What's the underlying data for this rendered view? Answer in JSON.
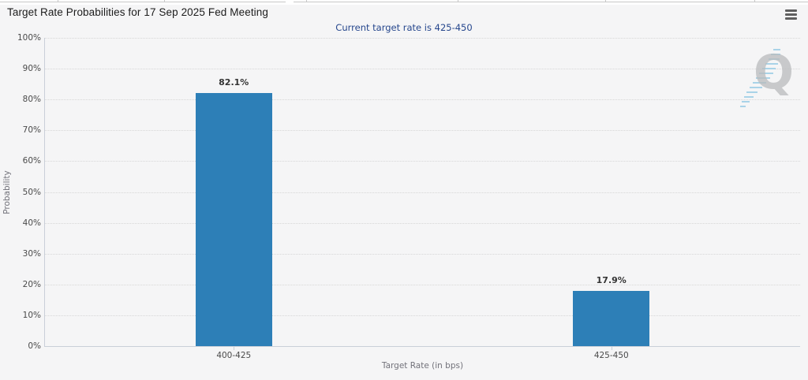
{
  "header": {
    "title": "Target Rate Probabilities for 17 Sep 2025 Fed Meeting",
    "subtitle": "Current target rate is 425-450"
  },
  "watermark": {
    "letter": "Q"
  },
  "chart_data": {
    "type": "bar",
    "title": "Target Rate Probabilities for 17 Sep 2025 Fed Meeting",
    "subtitle": "Current target rate is 425-450",
    "categories": [
      "400-425",
      "425-450"
    ],
    "values": [
      82.1,
      17.9
    ],
    "data_labels": [
      "82.1%",
      "17.9%"
    ],
    "xlabel": "Target Rate (in bps)",
    "ylabel": "Probability",
    "ylim": [
      0,
      100
    ],
    "ytick_step": 10,
    "ytick_labels": [
      "0%",
      "10%",
      "20%",
      "30%",
      "40%",
      "50%",
      "60%",
      "70%",
      "80%",
      "90%",
      "100%"
    ],
    "grid": "dotted-horizontal",
    "legend": "none",
    "bar_color": "#2d7fb7"
  },
  "colors": {
    "background": "#f5f5f6",
    "bar": "#2d7fb7",
    "subtitle_text": "#26478d",
    "axis_line": "#c9cfd8",
    "gridline": "#d7d7d7",
    "tick_label": "#4a4a4a",
    "axis_title": "#72727a",
    "watermark_gray": "#b9bbbd",
    "watermark_blue": "#a9d3e8"
  }
}
